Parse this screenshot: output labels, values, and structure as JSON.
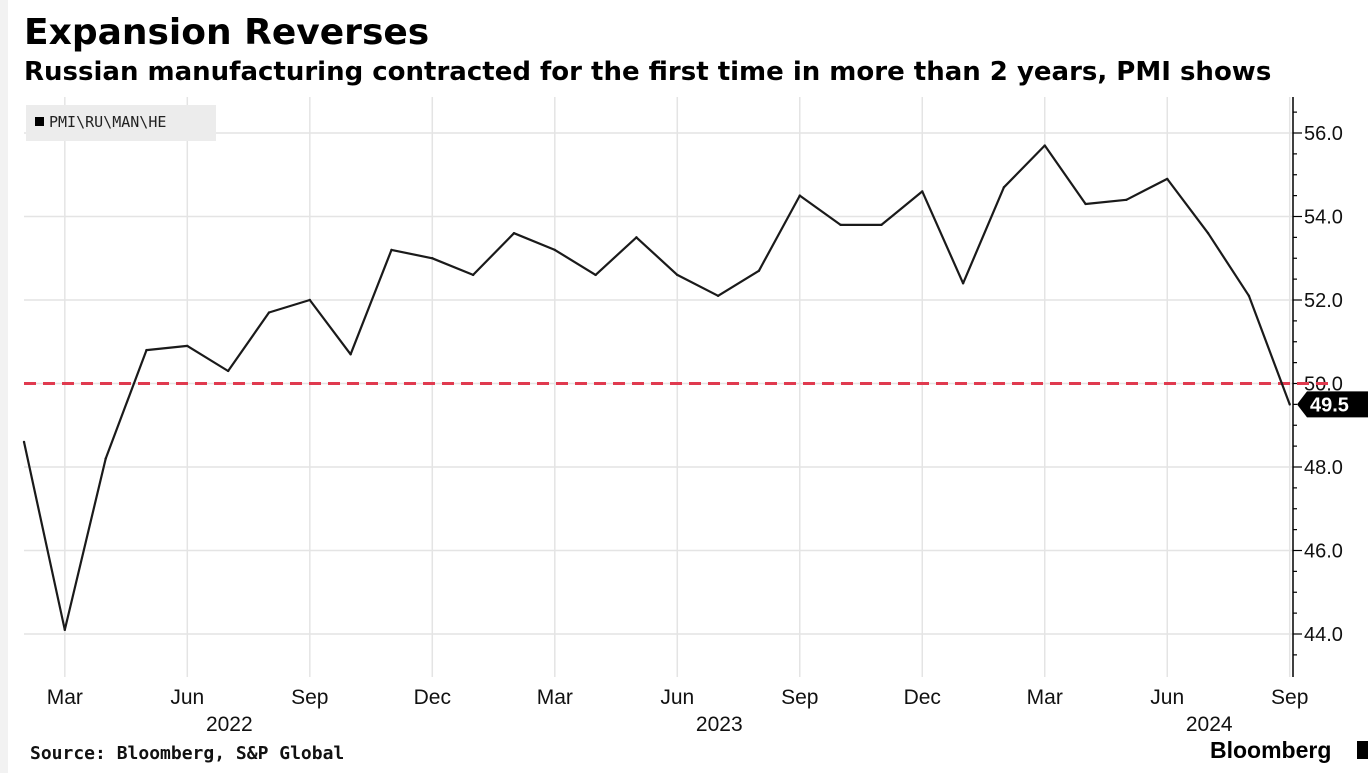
{
  "header": {
    "title": "Expansion Reverses",
    "subtitle": "Russian manufacturing contracted for the first time in more than 2 years, PMI shows"
  },
  "footer": {
    "source": "Source: Bloomberg, S&P Global",
    "brand": "Bloomberg"
  },
  "colors": {
    "line": "#1a1a1a",
    "reference": "#e03a4f",
    "grid": "#e4e4e4",
    "legend_bg": "#ececec",
    "callout_bg": "#000000"
  },
  "chart_data": {
    "type": "line",
    "legend": [
      "PMI\\RU\\MAN\\HE"
    ],
    "x": [
      "2022-02",
      "2022-03",
      "2022-04",
      "2022-05",
      "2022-06",
      "2022-07",
      "2022-08",
      "2022-09",
      "2022-10",
      "2022-11",
      "2022-12",
      "2023-01",
      "2023-02",
      "2023-03",
      "2023-04",
      "2023-05",
      "2023-06",
      "2023-07",
      "2023-08",
      "2023-09",
      "2023-10",
      "2023-11",
      "2023-12",
      "2024-01",
      "2024-02",
      "2024-03",
      "2024-04",
      "2024-05",
      "2024-06",
      "2024-07",
      "2024-08",
      "2024-09"
    ],
    "series": [
      {
        "name": "PMI\\RU\\MAN\\HE",
        "values": [
          48.6,
          44.1,
          48.2,
          50.8,
          50.9,
          50.3,
          51.7,
          52.0,
          50.7,
          53.2,
          53.0,
          52.6,
          53.6,
          53.2,
          52.6,
          53.5,
          52.6,
          52.1,
          52.7,
          54.5,
          53.8,
          53.8,
          54.6,
          52.4,
          54.7,
          55.7,
          54.3,
          54.4,
          54.9,
          53.6,
          52.1,
          49.5
        ]
      }
    ],
    "reference_line": {
      "value": 50.0,
      "style": "dashed"
    },
    "last_value_label": "49.5",
    "ylim": [
      43.0,
      56.5
    ],
    "y_ticks": [
      44.0,
      46.0,
      48.0,
      50.0,
      52.0,
      54.0,
      56.0
    ],
    "y_tick_labels": [
      "44.0",
      "46.0",
      "48.0",
      "50.0",
      "52.0",
      "54.0",
      "56.0"
    ],
    "x_month_ticks": [
      {
        "x": "2022-03",
        "label": "Mar"
      },
      {
        "x": "2022-06",
        "label": "Jun"
      },
      {
        "x": "2022-09",
        "label": "Sep"
      },
      {
        "x": "2022-12",
        "label": "Dec"
      },
      {
        "x": "2023-03",
        "label": "Mar"
      },
      {
        "x": "2023-06",
        "label": "Jun"
      },
      {
        "x": "2023-09",
        "label": "Sep"
      },
      {
        "x": "2023-12",
        "label": "Dec"
      },
      {
        "x": "2024-03",
        "label": "Mar"
      },
      {
        "x": "2024-06",
        "label": "Jun"
      },
      {
        "x": "2024-09",
        "label": "Sep"
      }
    ],
    "x_year_labels": [
      {
        "x": "2022-06",
        "label": "2022"
      },
      {
        "x": "2023-06",
        "label": "2023"
      },
      {
        "x": "2024-06",
        "label": "2024"
      }
    ],
    "grid": true,
    "y_axis_side": "right",
    "legend_position": "top-left"
  }
}
